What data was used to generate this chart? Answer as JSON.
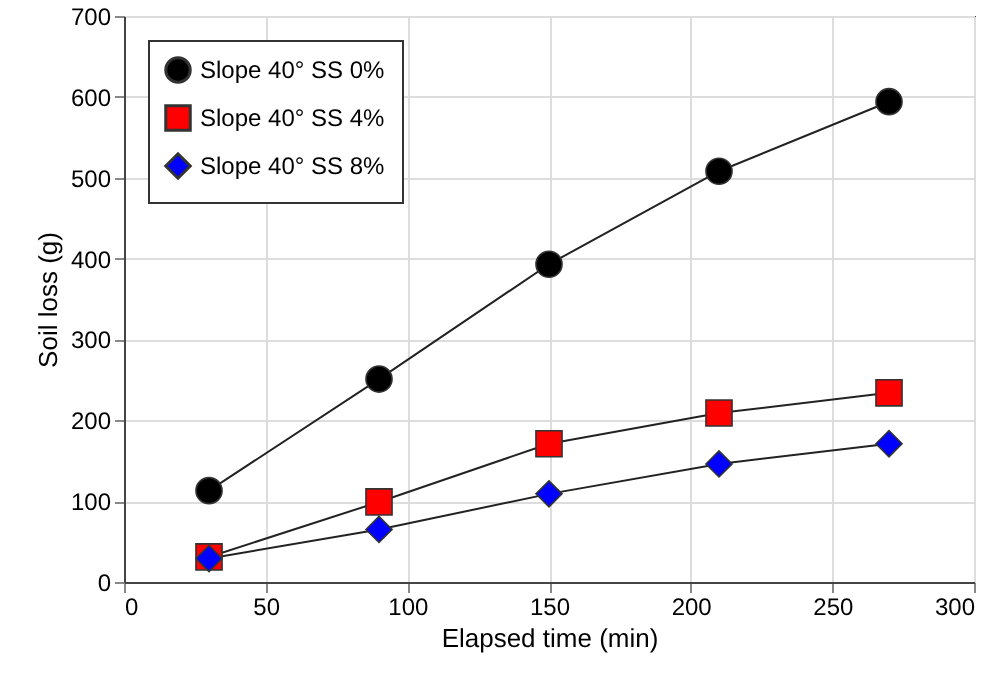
{
  "chart_data": {
    "type": "line",
    "xlabel": "Elapsed time (min)",
    "ylabel": "Soil loss (g)",
    "x": [
      30,
      90,
      150,
      210,
      270
    ],
    "series": [
      {
        "name": "Slope 40° SS 0%",
        "color": "#000000",
        "marker": "circle",
        "values": [
          113,
          251,
          393,
          508,
          594
        ]
      },
      {
        "name": "Slope 40° SS 4%",
        "color": "#ff0000",
        "marker": "square",
        "values": [
          31,
          99,
          171,
          209,
          234
        ]
      },
      {
        "name": "Slope 40° SS 8%",
        "color": "#0000ff",
        "marker": "diamond",
        "values": [
          29,
          65,
          109,
          146,
          171
        ]
      }
    ],
    "xlim": [
      0,
      300
    ],
    "xticks": [
      0,
      50,
      100,
      150,
      200,
      250,
      300
    ],
    "ylim": [
      0,
      700
    ],
    "yticks": [
      0,
      100,
      200,
      300,
      400,
      500,
      600,
      700
    ],
    "grid": true,
    "legend": "top left",
    "line_style": "solid"
  }
}
